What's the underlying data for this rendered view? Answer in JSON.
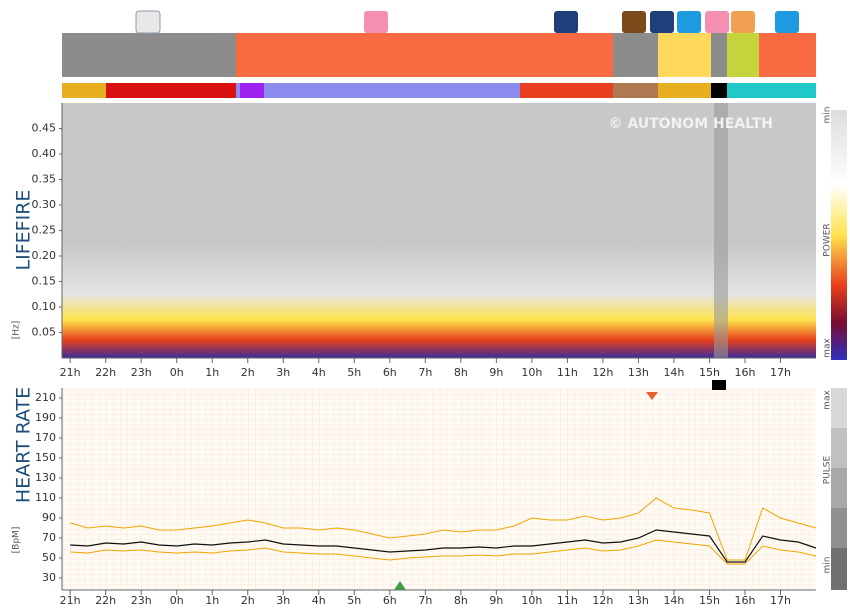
{
  "chart_data": [
    {
      "type": "spectrogram",
      "title": "LIFEFIRE",
      "y_unit": "[Hz]",
      "watermark": "© AUTONOM HEALTH",
      "legend_labels": [
        "min",
        "POWER",
        "max"
      ],
      "ylim": [
        0,
        0.5
      ],
      "yticks": [
        0.05,
        {
          "value": 0.1,
          "label": "0.10"
        },
        0.15,
        {
          "value": 0.2,
          "label": "0.20"
        },
        0.25,
        {
          "value": 0.3,
          "label": "0.30"
        },
        0.35,
        {
          "value": 0.4,
          "label": "0.40"
        },
        0.45
      ],
      "xlim": [
        -0.23,
        21.0
      ],
      "xticks": [
        {
          "value": 0,
          "label": "21h"
        },
        {
          "value": 1,
          "label": "22h"
        },
        {
          "value": 2,
          "label": "23h"
        },
        {
          "value": 3,
          "label": "0h"
        },
        {
          "value": 4,
          "label": "1h"
        },
        {
          "value": 5,
          "label": "2h"
        },
        {
          "value": 6,
          "label": "3h"
        },
        {
          "value": 7,
          "label": "4h"
        },
        {
          "value": 8,
          "label": "5h"
        },
        {
          "value": 9,
          "label": "6h"
        },
        {
          "value": 10,
          "label": "7h"
        },
        {
          "value": 11,
          "label": "8h"
        },
        {
          "value": 12,
          "label": "9h"
        },
        {
          "value": 13,
          "label": "10h"
        },
        {
          "value": 14,
          "label": "11h"
        },
        {
          "value": 15,
          "label": "12h"
        },
        {
          "value": 16,
          "label": "13h"
        },
        {
          "value": 17,
          "label": "14h"
        },
        {
          "value": 18,
          "label": "15h"
        },
        {
          "value": 19,
          "label": "16h"
        },
        {
          "value": 20,
          "label": "17h"
        }
      ]
    },
    {
      "type": "line",
      "title": "HEART RATE",
      "y_unit": "[BpM]",
      "legend_labels": [
        "max",
        "PULSE",
        "min"
      ],
      "ylim": [
        18,
        220
      ],
      "yticks": [
        30,
        50,
        70,
        90,
        110,
        130,
        150,
        170,
        190,
        210
      ],
      "xlim": [
        -0.23,
        21.0
      ],
      "xticks": [
        {
          "value": 0,
          "label": "21h"
        },
        {
          "value": 1,
          "label": "22h"
        },
        {
          "value": 2,
          "label": "23h"
        },
        {
          "value": 3,
          "label": "0h"
        },
        {
          "value": 4,
          "label": "1h"
        },
        {
          "value": 5,
          "label": "2h"
        },
        {
          "value": 6,
          "label": "3h"
        },
        {
          "value": 7,
          "label": "4h"
        },
        {
          "value": 8,
          "label": "5h"
        },
        {
          "value": 9,
          "label": "6h"
        },
        {
          "value": 10,
          "label": "7h"
        },
        {
          "value": 11,
          "label": "8h"
        },
        {
          "value": 12,
          "label": "9h"
        },
        {
          "value": 13,
          "label": "10h"
        },
        {
          "value": 14,
          "label": "11h"
        },
        {
          "value": 15,
          "label": "12h"
        },
        {
          "value": 16,
          "label": "13h"
        },
        {
          "value": 17,
          "label": "14h"
        },
        {
          "value": 18,
          "label": "15h"
        },
        {
          "value": 19,
          "label": "16h"
        },
        {
          "value": 20,
          "label": "17h"
        }
      ],
      "x": [
        0,
        0.5,
        1,
        1.5,
        2,
        2.5,
        3,
        3.5,
        4,
        4.5,
        5,
        5.5,
        6,
        6.5,
        7,
        7.5,
        8,
        8.5,
        9,
        9.5,
        10,
        10.5,
        11,
        11.5,
        12,
        12.5,
        13,
        13.5,
        14,
        14.5,
        15,
        15.5,
        16,
        16.5,
        17,
        17.5,
        18,
        18.5,
        19,
        19.5,
        20,
        20.5,
        21
      ],
      "series": [
        {
          "color": "#f0a500",
          "values": [
            85,
            80,
            82,
            80,
            82,
            78,
            78,
            80,
            82,
            85,
            88,
            85,
            80,
            80,
            78,
            80,
            78,
            74,
            70,
            72,
            74,
            78,
            76,
            78,
            78,
            82,
            90,
            88,
            88,
            92,
            88,
            90,
            95,
            110,
            100,
            98,
            95,
            48,
            48,
            100,
            90,
            85,
            80
          ]
        },
        {
          "color": "#f0a500",
          "values": [
            56,
            55,
            58,
            57,
            58,
            56,
            55,
            56,
            55,
            57,
            58,
            60,
            56,
            55,
            54,
            54,
            52,
            50,
            48,
            50,
            51,
            52,
            52,
            53,
            52,
            54,
            54,
            56,
            58,
            60,
            57,
            58,
            62,
            68,
            66,
            64,
            62,
            44,
            44,
            62,
            58,
            56,
            52
          ]
        },
        {
          "color": "#111111",
          "values": [
            63,
            62,
            65,
            64,
            66,
            63,
            62,
            64,
            63,
            65,
            66,
            68,
            64,
            63,
            62,
            62,
            60,
            58,
            56,
            57,
            58,
            60,
            60,
            61,
            60,
            62,
            62,
            64,
            66,
            68,
            65,
            66,
            70,
            78,
            76,
            74,
            72,
            46,
            46,
            72,
            68,
            66,
            60
          ]
        }
      ]
    }
  ]
}
